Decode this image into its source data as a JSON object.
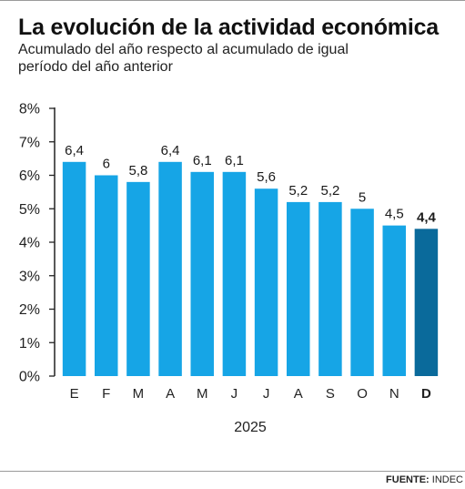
{
  "header": {
    "title": "La evolución de la actividad económica",
    "subtitle": "Acumulado del año respecto al acumulado de igual período del año anterior"
  },
  "footer": {
    "source_label": "FUENTE:",
    "source_value": "INDEC"
  },
  "chart_data": {
    "type": "bar",
    "title": "La evolución de la actividad económica",
    "subtitle": "Acumulado del año respecto al acumulado de igual período del año anterior",
    "categories": [
      "E",
      "F",
      "M",
      "A",
      "M",
      "J",
      "J",
      "A",
      "S",
      "O",
      "N",
      "D"
    ],
    "values": [
      6.4,
      6,
      5.8,
      6.4,
      6.1,
      6.1,
      5.6,
      5.2,
      5.2,
      5,
      4.5,
      4.4
    ],
    "data_labels": [
      "6,4",
      "6",
      "5,8",
      "6,4",
      "6,1",
      "6,1",
      "5,6",
      "5,2",
      "5,2",
      "5",
      "4,5",
      "4,4"
    ],
    "highlight_index": 11,
    "xlabel": "2025",
    "ylabel": "",
    "ylim": [
      0,
      8
    ],
    "yticks": [
      "0%",
      "1%",
      "2%",
      "3%",
      "4%",
      "5%",
      "6%",
      "7%",
      "8%"
    ],
    "grid": false,
    "legend": "none",
    "colors": {
      "bar": "#16A5E6",
      "highlight": "#0A6A9B",
      "axis": "#222222"
    }
  }
}
